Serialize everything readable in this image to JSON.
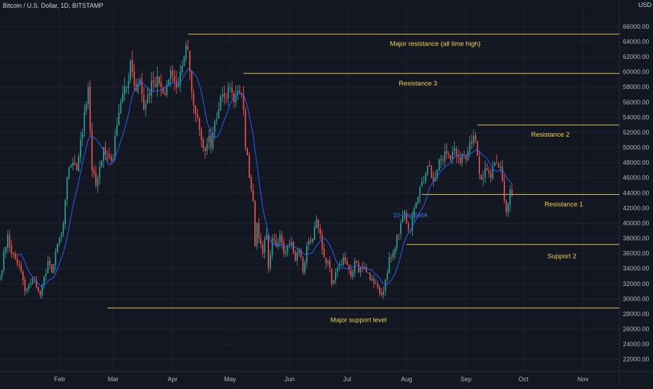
{
  "header": {
    "title": "Bitcoin / U.S. Dollar, 1D, BITSTAMP",
    "currency": "USD"
  },
  "colors": {
    "background": "#131722",
    "grid": "#1e2230",
    "up_candle": "#26a69a",
    "down_candle": "#ef5350",
    "sma_line": "#2962ff",
    "level_line": "#e0c94a",
    "level_text": "#f5d547",
    "axis_text": "#b2b5be"
  },
  "chart_data": {
    "type": "candlestick",
    "title": "Bitcoin / U.S. Dollar, 1D, BITSTAMP",
    "y_axis": {
      "ticks": [
        22000,
        24000,
        26000,
        28000,
        30000,
        32000,
        34000,
        36000,
        38000,
        40000,
        42000,
        44000,
        46000,
        48000,
        50000,
        52000,
        54000,
        56000,
        58000,
        60000,
        62000,
        64000,
        66000
      ],
      "tick_labels": [
        "22000.00",
        "24000.00",
        "26000.00",
        "28000.00",
        "30000.00",
        "32000.00",
        "34000.00",
        "36000.00",
        "38000.00",
        "40000.00",
        "42000.00",
        "44000.00",
        "46000.00",
        "48000.00",
        "50000.00",
        "52000.00",
        "54000.00",
        "56000.00",
        "58000.00",
        "60000.00",
        "62000.00",
        "64000.00",
        "66000.00"
      ],
      "range": [
        20400,
        68400
      ]
    },
    "x_axis": {
      "months": [
        {
          "label": "Feb",
          "day": 31
        },
        {
          "label": "Mar",
          "day": 59
        },
        {
          "label": "Apr",
          "day": 90
        },
        {
          "label": "May",
          "day": 120
        },
        {
          "label": "Jun",
          "day": 151
        },
        {
          "label": "Jul",
          "day": 181
        },
        {
          "label": "Aug",
          "day": 212
        },
        {
          "label": "Sep",
          "day": 243
        },
        {
          "label": "Oct",
          "day": 273
        },
        {
          "label": "Nov",
          "day": 304
        }
      ],
      "day_range": [
        0,
        323
      ]
    },
    "price_anchors": [
      [
        0,
        33000
      ],
      [
        4,
        38500
      ],
      [
        6,
        36000
      ],
      [
        10,
        34500
      ],
      [
        13,
        31000
      ],
      [
        18,
        32500
      ],
      [
        21,
        30500
      ],
      [
        25,
        35000
      ],
      [
        27,
        33500
      ],
      [
        31,
        38000
      ],
      [
        33,
        40000
      ],
      [
        35,
        46000
      ],
      [
        38,
        48000
      ],
      [
        40,
        47000
      ],
      [
        43,
        52000
      ],
      [
        46,
        58000
      ],
      [
        48,
        47000
      ],
      [
        50,
        45000
      ],
      [
        52,
        47500
      ],
      [
        54,
        50000
      ],
      [
        56,
        49000
      ],
      [
        59,
        48500
      ],
      [
        61,
        53000
      ],
      [
        63,
        56000
      ],
      [
        66,
        58000
      ],
      [
        68,
        61500
      ],
      [
        69,
        60000
      ],
      [
        71,
        57500
      ],
      [
        73,
        59000
      ],
      [
        75,
        55000
      ],
      [
        77,
        57000
      ],
      [
        80,
        58500
      ],
      [
        82,
        59500
      ],
      [
        84,
        58000
      ],
      [
        86,
        57000
      ],
      [
        88,
        59000
      ],
      [
        90,
        59500
      ],
      [
        92,
        58000
      ],
      [
        94,
        60000
      ],
      [
        96,
        62000
      ],
      [
        97,
        63500
      ],
      [
        98,
        63000
      ],
      [
        99,
        60000
      ],
      [
        101,
        55500
      ],
      [
        103,
        54000
      ],
      [
        105,
        51000
      ],
      [
        107,
        49500
      ],
      [
        109,
        51500
      ],
      [
        110,
        50000
      ],
      [
        112,
        53500
      ],
      [
        114,
        55000
      ],
      [
        116,
        57000
      ],
      [
        118,
        56500
      ],
      [
        120,
        58000
      ],
      [
        122,
        56000
      ],
      [
        124,
        57500
      ],
      [
        126,
        57000
      ],
      [
        127,
        55000
      ],
      [
        128,
        50000
      ],
      [
        129,
        49000
      ],
      [
        130,
        46000
      ],
      [
        132,
        43000
      ],
      [
        133,
        37000
      ],
      [
        134,
        40000
      ],
      [
        135,
        38000
      ],
      [
        137,
        36000
      ],
      [
        139,
        38500
      ],
      [
        140,
        34000
      ],
      [
        142,
        38000
      ],
      [
        144,
        37000
      ],
      [
        146,
        38500
      ],
      [
        148,
        36000
      ],
      [
        150,
        37000
      ],
      [
        152,
        37500
      ],
      [
        154,
        35000
      ],
      [
        156,
        36500
      ],
      [
        158,
        33500
      ],
      [
        160,
        37000
      ],
      [
        162,
        37500
      ],
      [
        164,
        39500
      ],
      [
        165,
        40500
      ],
      [
        167,
        38500
      ],
      [
        169,
        35500
      ],
      [
        171,
        35000
      ],
      [
        173,
        32000
      ],
      [
        175,
        33500
      ],
      [
        177,
        34500
      ],
      [
        179,
        35500
      ],
      [
        181,
        34500
      ],
      [
        183,
        33000
      ],
      [
        185,
        35000
      ],
      [
        187,
        33500
      ],
      [
        189,
        34000
      ],
      [
        191,
        33500
      ],
      [
        193,
        32500
      ],
      [
        195,
        32000
      ],
      [
        197,
        31500
      ],
      [
        199,
        30500
      ],
      [
        200,
        31000
      ],
      [
        201,
        32500
      ],
      [
        203,
        35500
      ],
      [
        205,
        36000
      ],
      [
        207,
        38500
      ],
      [
        209,
        40000
      ],
      [
        211,
        41500
      ],
      [
        212,
        40000
      ],
      [
        214,
        39000
      ],
      [
        216,
        42000
      ],
      [
        218,
        43500
      ],
      [
        220,
        45500
      ],
      [
        222,
        46500
      ],
      [
        224,
        47500
      ],
      [
        226,
        45500
      ],
      [
        228,
        47000
      ],
      [
        230,
        48500
      ],
      [
        232,
        49500
      ],
      [
        234,
        49000
      ],
      [
        236,
        49500
      ],
      [
        238,
        49000
      ],
      [
        240,
        48000
      ],
      [
        242,
        49000
      ],
      [
        244,
        49500
      ],
      [
        246,
        50500
      ],
      [
        247,
        51500
      ],
      [
        248,
        51000
      ],
      [
        249,
        49000
      ],
      [
        250,
        46500
      ],
      [
        252,
        46000
      ],
      [
        254,
        47000
      ],
      [
        256,
        46000
      ],
      [
        257,
        47500
      ],
      [
        259,
        48000
      ],
      [
        261,
        47500
      ],
      [
        262,
        45500
      ],
      [
        263,
        43000
      ],
      [
        264,
        41500
      ],
      [
        265,
        42500
      ],
      [
        266,
        44500
      ],
      [
        267,
        43700
      ]
    ],
    "sma": {
      "name": "10-day SMA",
      "period": 10
    },
    "levels": [
      {
        "name": "resistance_ath",
        "label": "Major resistance (all time high)",
        "price": 65000,
        "day_start": 98,
        "day_end": 323,
        "label_day": 227
      },
      {
        "name": "resistance_3",
        "label": "Resistance 3",
        "price": 59800,
        "day_start": 127,
        "day_end": 323,
        "label_day": 218
      },
      {
        "name": "resistance_2",
        "label": "Resistance 2",
        "price": 53000,
        "day_start": 249,
        "day_end": 323,
        "label_day": 287
      },
      {
        "name": "resistance_1",
        "label": "Resistance 1",
        "price": 43800,
        "day_start": 220,
        "day_end": 323,
        "label_day": 294
      },
      {
        "name": "support_2",
        "label": "Support 2",
        "price": 37200,
        "day_start": 212,
        "day_end": 323,
        "label_day": 293
      },
      {
        "name": "major_support",
        "label": "Major support level",
        "price": 28800,
        "day_start": 56,
        "day_end": 323,
        "label_day": 187
      }
    ]
  }
}
